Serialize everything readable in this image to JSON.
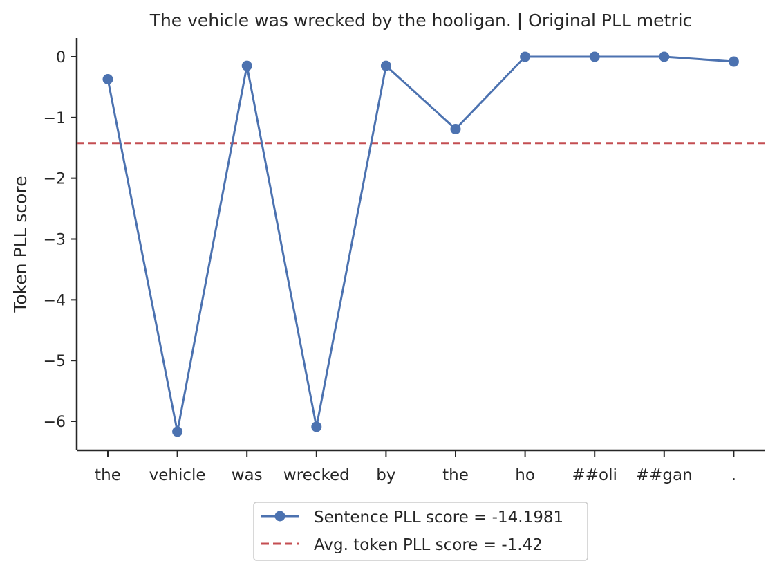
{
  "chart_data": {
    "type": "line",
    "title": "The vehicle was wrecked by the hooligan. | Original PLL metric",
    "xlabel": "",
    "ylabel": "Token PLL score",
    "categories": [
      "the",
      "vehicle",
      "was",
      "wrecked",
      "by",
      "the",
      "ho",
      "##oli",
      "##gan",
      "."
    ],
    "series": [
      {
        "name": "Sentence PLL score = -14.1981",
        "color": "#4c72b0",
        "style": "solid-with-circle-markers",
        "values": [
          -0.37,
          -6.17,
          -0.15,
          -6.09,
          -0.15,
          -1.19,
          0.0,
          0.0,
          0.0,
          -0.08
        ]
      }
    ],
    "reference_line": {
      "name": "Avg. token PLL score = -1.42",
      "value": -1.42,
      "color": "#c44e52",
      "style": "dashed"
    },
    "ylim": [
      -6.5,
      0.32
    ],
    "yticks": [
      0,
      -1,
      -2,
      -3,
      -4,
      -5,
      -6
    ],
    "ytick_labels": [
      "0",
      "−1",
      "−2",
      "−3",
      "−4",
      "−5",
      "−6"
    ],
    "grid": false,
    "legend_placement": "bottom-center"
  }
}
